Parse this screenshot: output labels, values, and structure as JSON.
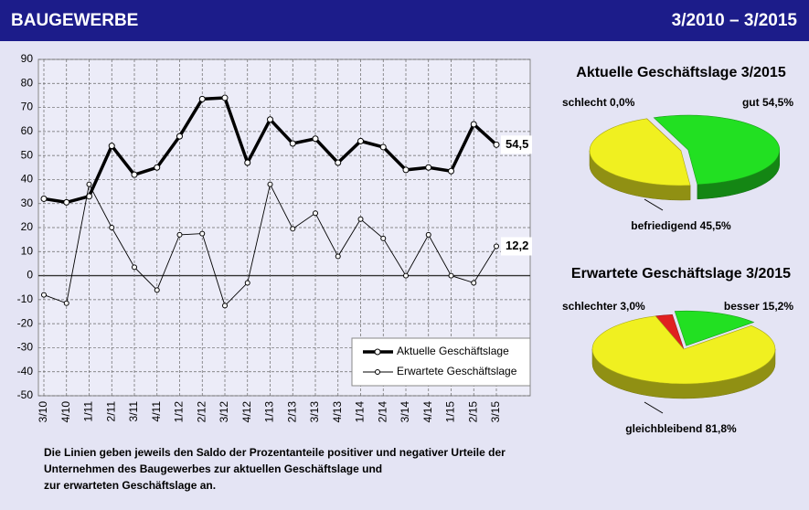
{
  "header": {
    "title": "BAUGEWERBE",
    "period": "3/2010 – 3/2015"
  },
  "chart_data": [
    {
      "type": "line",
      "categories": [
        "3/10",
        "4/10",
        "1/11",
        "2/11",
        "3/11",
        "4/11",
        "1/12",
        "2/12",
        "3/12",
        "4/12",
        "1/13",
        "2/13",
        "3/13",
        "4/13",
        "1/14",
        "2/14",
        "3/14",
        "4/14",
        "1/15",
        "2/15",
        "3/15"
      ],
      "series": [
        {
          "name": "Aktuelle Geschäftslage",
          "color": "#000000",
          "values": [
            32,
            30.5,
            33,
            54,
            42,
            45,
            58,
            73.5,
            74,
            47,
            65,
            55,
            57,
            47,
            56,
            53.5,
            44,
            45,
            43.5,
            63,
            54.5
          ],
          "value_labels": [
            null,
            null,
            null,
            null,
            null,
            null,
            null,
            null,
            null,
            null,
            null,
            null,
            null,
            null,
            null,
            null,
            null,
            null,
            null,
            null,
            "54,5"
          ]
        },
        {
          "name": "Erwartete Geschäftslage",
          "color": "#000000",
          "values": [
            -8,
            -11.5,
            38,
            20,
            3.5,
            -6,
            17,
            17.5,
            -12.5,
            -3,
            38,
            19.5,
            26,
            8,
            23.5,
            15.5,
            0,
            17,
            0,
            -3,
            12.2
          ],
          "value_labels": [
            null,
            null,
            null,
            null,
            null,
            null,
            null,
            null,
            null,
            null,
            null,
            null,
            null,
            null,
            null,
            null,
            null,
            null,
            null,
            null,
            "12,2"
          ]
        }
      ],
      "ylim": [
        -50,
        90
      ],
      "yticks": [
        -50,
        -40,
        -30,
        -20,
        -10,
        0,
        10,
        20,
        30,
        40,
        50,
        60,
        70,
        80,
        90
      ],
      "grid": true
    },
    {
      "type": "pie",
      "title": "Aktuelle Geschäftslage 3/2015",
      "categories": [
        "schlecht",
        "gut",
        "befriedigend"
      ],
      "values": [
        0,
        54.5,
        45.5
      ],
      "value_labels": [
        "0,0%",
        "54,5%",
        "45,5%"
      ],
      "colors": [
        "#e02020",
        "#22e022",
        "#f0f020"
      ]
    },
    {
      "type": "pie",
      "title": "Erwartete Geschäftslage 3/2015",
      "categories": [
        "schlechter",
        "besser",
        "gleichbleibend"
      ],
      "values": [
        3.0,
        15.2,
        81.8
      ],
      "value_labels": [
        "3,0%",
        "15,2%",
        "81,8%"
      ],
      "colors": [
        "#e02020",
        "#22e022",
        "#f0f020"
      ]
    }
  ],
  "footnote": [
    "Die Linien geben jeweils den Saldo der Prozentanteile positiver und negativer Urteile der",
    "Unternehmen des Baugewerbes zur aktuellen Geschäftslage und",
    "zur erwarteten Geschäftslage an."
  ]
}
